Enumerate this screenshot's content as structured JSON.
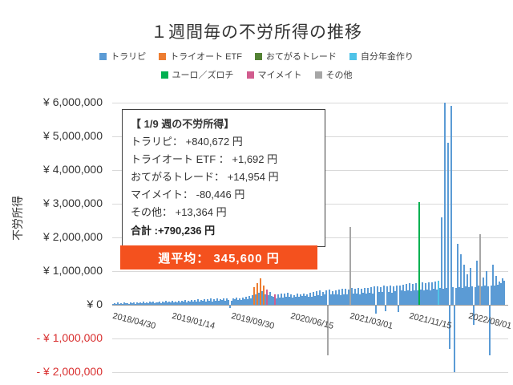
{
  "title": "１週間毎の不労所得の推移",
  "y_axis": {
    "title": "不労所得",
    "ticks": [
      {
        "value": 6000000,
        "label": "¥ 6,000,000",
        "negative": false
      },
      {
        "value": 5000000,
        "label": "¥ 5,000,000",
        "negative": false
      },
      {
        "value": 4000000,
        "label": "¥ 4,000,000",
        "negative": false
      },
      {
        "value": 3000000,
        "label": "¥ 3,000,000",
        "negative": false
      },
      {
        "value": 2000000,
        "label": "¥ 2,000,000",
        "negative": false
      },
      {
        "value": 1000000,
        "label": "¥ 1,000,000",
        "negative": false
      },
      {
        "value": 0,
        "label": "¥ 0",
        "negative": false
      },
      {
        "value": -1000000,
        "label": "- ¥ 1,000,000",
        "negative": true
      },
      {
        "value": -2000000,
        "label": "- ¥ 2,000,000",
        "negative": true
      }
    ],
    "negative_color": "#d93030"
  },
  "annotation": {
    "title": "【 1/9 週の不労所得】",
    "lines": [
      "トラリピ： +840,672 円",
      "トライオート ETF ： +1,692 円",
      "おてがるトレード： +14,954 円",
      "マイメイト： -80,446 円",
      "その他： +13,364 円"
    ],
    "total": "合計 :+790,236 円"
  },
  "weekly_average": {
    "label": "週平均： 345,600 円",
    "bg_color": "#f4511e"
  },
  "chart_data": {
    "type": "bar",
    "title": "１週間毎の不労所得の推移",
    "xlabel": "",
    "ylabel": "不労所得",
    "ylim": [
      -2000000,
      6000000
    ],
    "grid": true,
    "legend_position": "top",
    "x_start": "2018/04/30",
    "x_interval": "1 week",
    "x_tick_labels": [
      "2018/04/30",
      "2019/01/14",
      "2019/09/30",
      "2020/06/15",
      "2021/03/01",
      "2021/11/15",
      "2022/08/01"
    ],
    "x_tick_step_weeks": 37,
    "series": [
      {
        "name": "トラリピ",
        "color": "#5b9bd5"
      },
      {
        "name": "トライオート ETF",
        "color": "#ed7d31"
      },
      {
        "name": "おてがるトレード",
        "color": "#548235"
      },
      {
        "name": "自分年金作り",
        "color": "#4fc3e8"
      },
      {
        "name": "ユーロ／ズロチ",
        "color": "#00b050"
      },
      {
        "name": "マイメイト",
        "color": "#d15c8e"
      },
      {
        "name": "その他",
        "color": "#a6a6a6"
      }
    ],
    "legend_row_split": [
      4,
      3
    ],
    "value_unit_yen": 1000,
    "default_series": "トラリピ",
    "color_overrides": {
      "88": "トライオート ETF",
      "90": "トライオート ETF",
      "92": "トライオート ETF",
      "94": "トライオート ETF",
      "96": "マイメイト",
      "101": "マイメイト",
      "134": "その他",
      "148": "その他",
      "191": "ユーロ／ズロチ",
      "203": "自分年金作り",
      "229": "その他"
    },
    "values": [
      30,
      45,
      20,
      60,
      35,
      50,
      25,
      70,
      40,
      55,
      30,
      65,
      45,
      80,
      35,
      60,
      50,
      75,
      40,
      90,
      55,
      70,
      45,
      85,
      60,
      95,
      50,
      80,
      65,
      100,
      55,
      90,
      70,
      110,
      60,
      95,
      75,
      120,
      65,
      105,
      80,
      120,
      70,
      130,
      90,
      140,
      75,
      125,
      95,
      150,
      85,
      135,
      100,
      160,
      90,
      145,
      110,
      170,
      95,
      155,
      120,
      180,
      100,
      160,
      130,
      190,
      110,
      170,
      140,
      200,
      120,
      180,
      150,
      -90,
      130,
      190,
      160,
      220,
      140,
      200,
      150,
      220,
      160,
      240,
      170,
      260,
      180,
      280,
      520,
      300,
      640,
      350,
      790,
      400,
      560,
      320,
      450,
      280,
      380,
      260,
      240,
      300,
      200,
      320,
      220,
      340,
      210,
      330,
      230,
      350,
      240,
      310,
      220,
      290,
      250,
      330,
      230,
      300,
      260,
      340,
      260,
      320,
      240,
      360,
      250,
      380,
      270,
      400,
      280,
      420,
      260,
      390,
      300,
      430,
      -1500,
      450,
      320,
      410,
      300,
      440,
      310,
      450,
      290,
      470,
      320,
      480,
      300,
      460,
      2300,
      490,
      330,
      470,
      340,
      500,
      320,
      480,
      350,
      510,
      330,
      490,
      360,
      520,
      340,
      540,
      -250,
      550,
      370,
      530,
      380,
      560,
      -180,
      540,
      390,
      570,
      360,
      550,
      400,
      580,
      -220,
      560,
      420,
      600,
      400,
      620,
      430,
      640,
      410,
      630,
      440,
      650,
      420,
      3050,
      450,
      660,
      430,
      640,
      460,
      670,
      440,
      660,
      480,
      700,
      460,
      720,
      490,
      2600,
      470,
      6000,
      500,
      4800,
      -1300,
      5900,
      520,
      -2000,
      490,
      1800,
      530,
      1500,
      510,
      1200,
      540,
      900,
      520,
      1100,
      550,
      -600,
      530,
      1300,
      560,
      2100,
      540,
      800,
      570,
      1000,
      550,
      -1500,
      580,
      1200,
      560,
      850,
      600,
      700,
      650,
      790,
      720
    ]
  }
}
